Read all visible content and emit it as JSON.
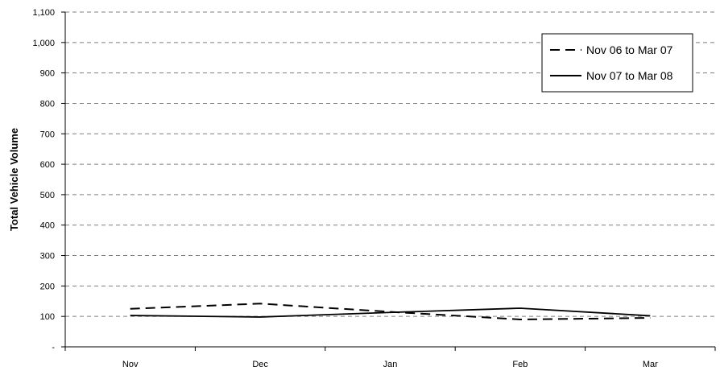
{
  "chart_data": {
    "type": "line",
    "title": "",
    "xlabel": "",
    "ylabel": "Total Vehicle Volume",
    "categories": [
      "Nov",
      "Dec",
      "Jan",
      "Feb",
      "Mar"
    ],
    "ylim": [
      0,
      1100
    ],
    "yticks": [
      0,
      100,
      200,
      300,
      400,
      500,
      600,
      700,
      800,
      900,
      1000,
      1100
    ],
    "ytick_labels": [
      "-",
      "100",
      "200",
      "300",
      "400",
      "500",
      "600",
      "700",
      "800",
      "900",
      "1,000",
      "1,100"
    ],
    "grid": "horizontal dashed",
    "legend_position": "top-right",
    "series": [
      {
        "name": "Nov 06 to Mar 07",
        "style": "dashed",
        "values": [
          125,
          142,
          115,
          90,
          95
        ]
      },
      {
        "name": "Nov 07 to Mar 08",
        "style": "solid",
        "values": [
          103,
          98,
          113,
          127,
          102
        ]
      }
    ]
  }
}
